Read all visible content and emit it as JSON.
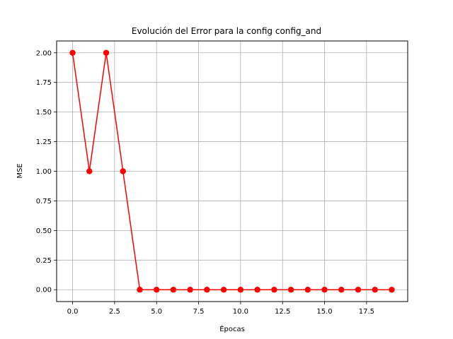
{
  "chart_data": {
    "type": "line",
    "title": "Evolución del Error para la config config_and",
    "xlabel": "Épocas",
    "ylabel": "MSE",
    "x": [
      0,
      1,
      2,
      3,
      4,
      5,
      6,
      7,
      8,
      9,
      10,
      11,
      12,
      13,
      14,
      15,
      16,
      17,
      18,
      19
    ],
    "series": [
      {
        "values": [
          2,
          1,
          2,
          1,
          0,
          0,
          0,
          0,
          0,
          0,
          0,
          0,
          0,
          0,
          0,
          0,
          0,
          0,
          0,
          0
        ],
        "color": "#ff0000",
        "marker": "circle"
      }
    ],
    "xlim": [
      -0.95,
      19.95
    ],
    "ylim": [
      -0.1,
      2.1
    ],
    "xticks": [
      0.0,
      2.5,
      5.0,
      7.5,
      10.0,
      12.5,
      15.0,
      17.5
    ],
    "xtick_labels": [
      "0.0",
      "2.5",
      "5.0",
      "7.5",
      "10.0",
      "12.5",
      "15.0",
      "17.5"
    ],
    "yticks": [
      0.0,
      0.25,
      0.5,
      0.75,
      1.0,
      1.25,
      1.5,
      1.75,
      2.0
    ],
    "ytick_labels": [
      "0.00",
      "0.25",
      "0.50",
      "0.75",
      "1.00",
      "1.25",
      "1.50",
      "1.75",
      "2.00"
    ],
    "grid": true
  }
}
